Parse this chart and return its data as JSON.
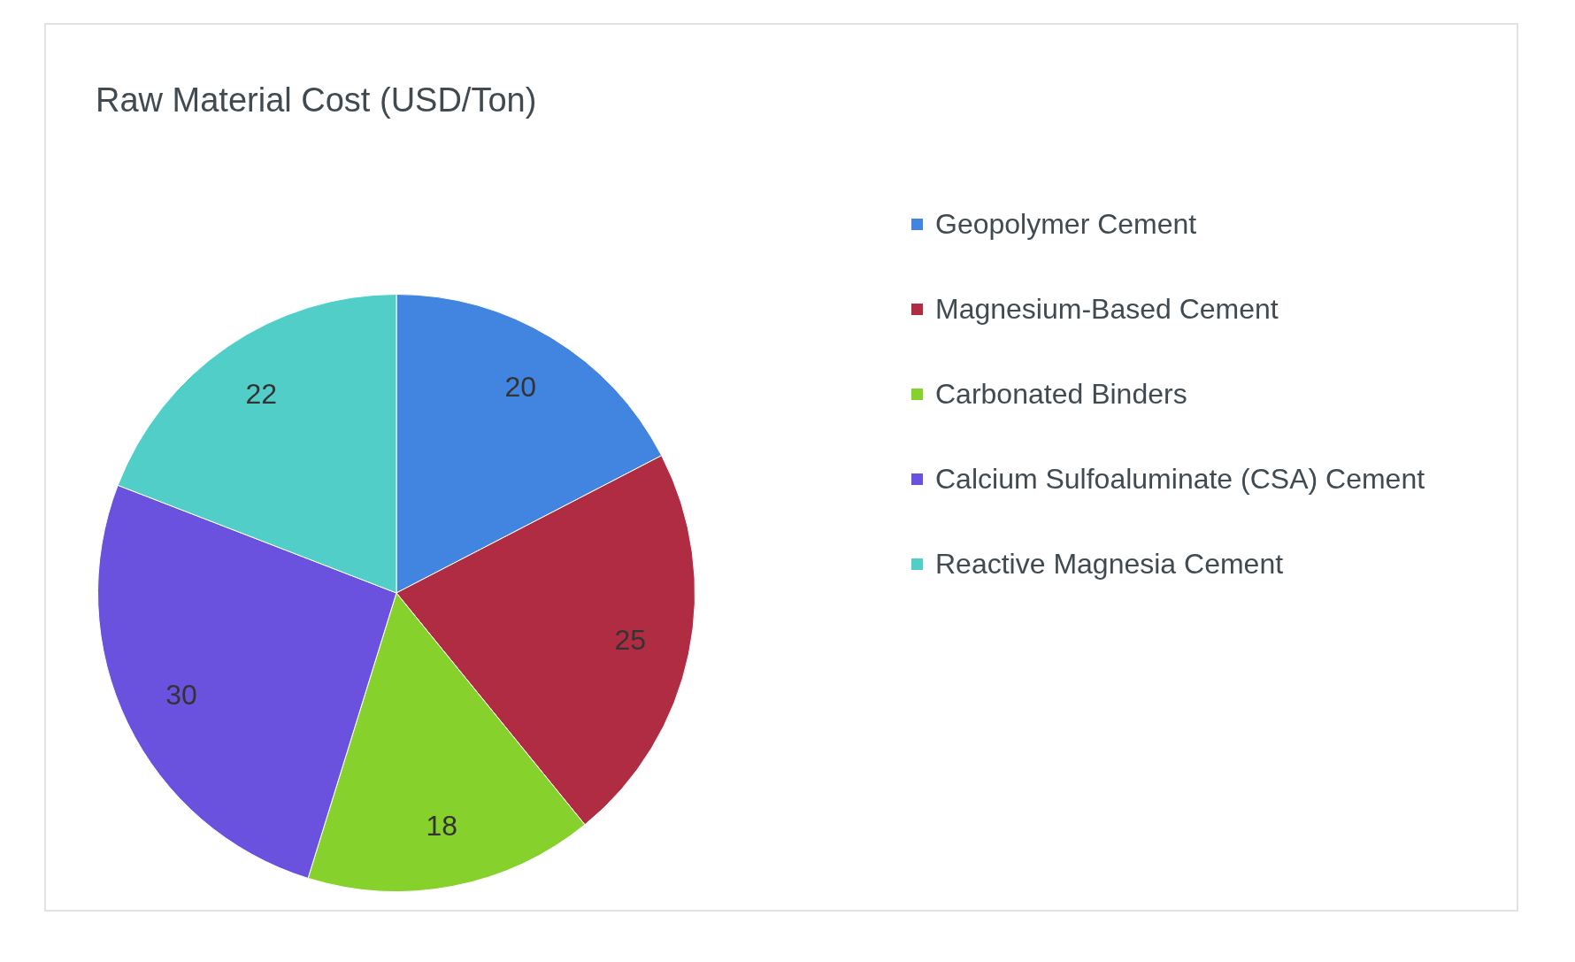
{
  "chart_data": {
    "type": "pie",
    "title": "Raw Material Cost (USD/Ton)",
    "categories": [
      "Geopolymer Cement",
      "Magnesium-Based Cement",
      "Carbonated Binders",
      "Calcium Sulfoaluminate (CSA) Cement",
      "Reactive Magnesia Cement"
    ],
    "values": [
      20,
      25,
      18,
      30,
      22
    ],
    "colors": [
      "#4285e0",
      "#b02c42",
      "#86d12c",
      "#6a52de",
      "#52cec8"
    ],
    "data_labels": true,
    "legend": "right"
  }
}
